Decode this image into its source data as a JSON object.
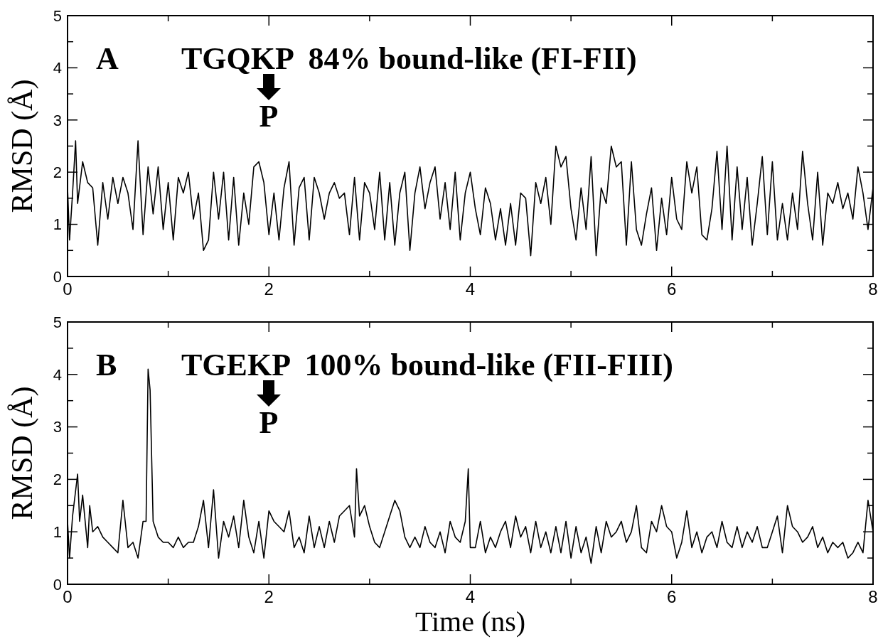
{
  "chart_data": [
    {
      "type": "line",
      "ylabel": "RMSD (Å)",
      "annotations": [
        "A",
        "TGQKP  84% bound-like (FI-FII)",
        "P"
      ],
      "xlim": [
        0,
        8
      ],
      "ylim": [
        0,
        5
      ],
      "xticks": [
        0,
        {
          "value": 1,
          "label": null
        },
        2,
        {
          "value": 3,
          "label": null
        },
        4,
        {
          "value": 5,
          "label": null
        },
        6,
        {
          "value": 7,
          "label": null
        },
        8
      ],
      "yticks": [
        0,
        {
          "value": 0.5,
          "label": null
        },
        1,
        {
          "value": 1.5,
          "label": null
        },
        2,
        {
          "value": 2.5,
          "label": null
        },
        3,
        {
          "value": 3.5,
          "label": null
        },
        4,
        {
          "value": 4.5,
          "label": null
        },
        5
      ],
      "x": [
        0,
        0.02,
        0.05,
        0.08,
        0.1,
        0.15,
        0.2,
        0.25,
        0.3,
        0.35,
        0.4,
        0.45,
        0.5,
        0.55,
        0.6,
        0.65,
        0.7,
        0.75,
        0.8,
        0.85,
        0.9,
        0.95,
        1.0,
        1.05,
        1.1,
        1.15,
        1.2,
        1.25,
        1.3,
        1.35,
        1.4,
        1.45,
        1.5,
        1.55,
        1.6,
        1.65,
        1.7,
        1.75,
        1.8,
        1.85,
        1.9,
        1.95,
        2.0,
        2.05,
        2.1,
        2.15,
        2.2,
        2.25,
        2.3,
        2.35,
        2.4,
        2.45,
        2.5,
        2.55,
        2.6,
        2.65,
        2.7,
        2.75,
        2.8,
        2.85,
        2.9,
        2.95,
        3.0,
        3.05,
        3.1,
        3.15,
        3.2,
        3.25,
        3.3,
        3.35,
        3.4,
        3.45,
        3.5,
        3.55,
        3.6,
        3.65,
        3.7,
        3.75,
        3.8,
        3.85,
        3.9,
        3.95,
        4.0,
        4.05,
        4.1,
        4.15,
        4.2,
        4.25,
        4.3,
        4.35,
        4.4,
        4.45,
        4.5,
        4.55,
        4.6,
        4.65,
        4.7,
        4.75,
        4.8,
        4.85,
        4.9,
        4.95,
        5.0,
        5.05,
        5.1,
        5.15,
        5.2,
        5.25,
        5.3,
        5.35,
        5.4,
        5.45,
        5.5,
        5.55,
        5.6,
        5.65,
        5.7,
        5.75,
        5.8,
        5.85,
        5.9,
        5.95,
        6.0,
        6.05,
        6.1,
        6.15,
        6.2,
        6.25,
        6.3,
        6.35,
        6.4,
        6.45,
        6.5,
        6.55,
        6.6,
        6.65,
        6.7,
        6.75,
        6.8,
        6.85,
        6.9,
        6.95,
        7.0,
        7.05,
        7.1,
        7.15,
        7.2,
        7.25,
        7.3,
        7.35,
        7.4,
        7.45,
        7.5,
        7.55,
        7.6,
        7.65,
        7.7,
        7.75,
        7.8,
        7.85,
        7.9,
        7.95,
        8.0
      ],
      "series": [
        {
          "color": "#000000",
          "values": [
            1.7,
            0.7,
            1.6,
            2.6,
            1.4,
            2.2,
            1.8,
            1.7,
            0.6,
            1.8,
            1.1,
            1.9,
            1.4,
            1.9,
            1.6,
            0.9,
            2.6,
            0.8,
            2.1,
            1.2,
            2.1,
            0.9,
            1.8,
            0.7,
            1.9,
            1.6,
            2.0,
            1.1,
            1.6,
            0.5,
            0.7,
            2.0,
            1.1,
            2.0,
            0.7,
            1.9,
            0.6,
            1.6,
            1.0,
            2.1,
            2.2,
            1.8,
            0.8,
            1.6,
            0.7,
            1.7,
            2.2,
            0.6,
            1.7,
            1.9,
            0.7,
            1.9,
            1.6,
            1.1,
            1.6,
            1.8,
            1.5,
            1.6,
            0.8,
            1.9,
            0.7,
            1.8,
            1.6,
            0.9,
            2.0,
            0.7,
            1.8,
            0.6,
            1.6,
            2.0,
            0.5,
            1.6,
            2.1,
            1.3,
            1.8,
            2.1,
            1.1,
            1.8,
            0.9,
            2.0,
            0.7,
            1.6,
            2.0,
            1.3,
            0.8,
            1.7,
            1.4,
            0.7,
            1.3,
            0.6,
            1.4,
            0.6,
            1.6,
            1.5,
            0.4,
            1.8,
            1.4,
            1.9,
            1.0,
            2.5,
            2.1,
            2.3,
            1.3,
            0.7,
            1.7,
            0.9,
            2.3,
            0.4,
            1.7,
            1.4,
            2.5,
            2.1,
            2.2,
            0.6,
            2.2,
            0.9,
            0.6,
            1.2,
            1.7,
            0.5,
            1.5,
            0.8,
            1.9,
            1.1,
            0.9,
            2.2,
            1.6,
            2.1,
            0.8,
            0.7,
            1.3,
            2.4,
            0.9,
            2.5,
            0.7,
            2.1,
            0.9,
            1.9,
            0.6,
            1.4,
            2.3,
            0.8,
            2.2,
            0.7,
            1.4,
            0.7,
            1.6,
            0.9,
            2.4,
            1.4,
            0.7,
            2.0,
            0.6,
            1.6,
            1.4,
            1.8,
            1.3,
            1.6,
            1.1,
            2.1,
            1.6,
            0.9,
            1.7
          ]
        }
      ]
    },
    {
      "type": "line",
      "xlabel": "Time (ns)",
      "ylabel": "RMSD (Å)",
      "annotations": [
        "B",
        "TGEKP  100% bound-like (FII-FIII)",
        "P"
      ],
      "xlim": [
        0,
        8
      ],
      "ylim": [
        0,
        5
      ],
      "xticks": [
        0,
        {
          "value": 1,
          "label": null
        },
        2,
        {
          "value": 3,
          "label": null
        },
        4,
        {
          "value": 5,
          "label": null
        },
        6,
        {
          "value": 7,
          "label": null
        },
        8
      ],
      "yticks": [
        0,
        {
          "value": 0.5,
          "label": null
        },
        1,
        {
          "value": 1.5,
          "label": null
        },
        2,
        {
          "value": 2.5,
          "label": null
        },
        3,
        {
          "value": 3.5,
          "label": null
        },
        4,
        {
          "value": 4.5,
          "label": null
        },
        5
      ],
      "x": [
        0,
        0.02,
        0.05,
        0.1,
        0.12,
        0.15,
        0.2,
        0.22,
        0.25,
        0.3,
        0.35,
        0.4,
        0.45,
        0.5,
        0.55,
        0.6,
        0.65,
        0.7,
        0.75,
        0.78,
        0.8,
        0.82,
        0.85,
        0.9,
        0.95,
        1.0,
        1.05,
        1.1,
        1.15,
        1.2,
        1.25,
        1.3,
        1.35,
        1.4,
        1.45,
        1.5,
        1.55,
        1.6,
        1.65,
        1.7,
        1.75,
        1.8,
        1.85,
        1.9,
        1.95,
        2.0,
        2.05,
        2.1,
        2.15,
        2.2,
        2.25,
        2.3,
        2.35,
        2.4,
        2.45,
        2.5,
        2.55,
        2.6,
        2.65,
        2.7,
        2.75,
        2.8,
        2.85,
        2.87,
        2.9,
        2.95,
        3.0,
        3.05,
        3.1,
        3.15,
        3.2,
        3.25,
        3.3,
        3.35,
        3.4,
        3.45,
        3.5,
        3.55,
        3.6,
        3.65,
        3.7,
        3.75,
        3.8,
        3.85,
        3.9,
        3.95,
        3.98,
        4.0,
        4.05,
        4.1,
        4.15,
        4.2,
        4.25,
        4.3,
        4.35,
        4.4,
        4.45,
        4.5,
        4.55,
        4.6,
        4.65,
        4.7,
        4.75,
        4.8,
        4.85,
        4.9,
        4.95,
        5.0,
        5.05,
        5.1,
        5.15,
        5.2,
        5.25,
        5.3,
        5.35,
        5.4,
        5.45,
        5.5,
        5.55,
        5.6,
        5.65,
        5.7,
        5.75,
        5.8,
        5.85,
        5.9,
        5.95,
        6.0,
        6.05,
        6.1,
        6.15,
        6.2,
        6.25,
        6.3,
        6.35,
        6.4,
        6.45,
        6.5,
        6.55,
        6.6,
        6.65,
        6.7,
        6.75,
        6.8,
        6.85,
        6.9,
        6.95,
        7.0,
        7.05,
        7.1,
        7.15,
        7.2,
        7.25,
        7.3,
        7.35,
        7.4,
        7.45,
        7.5,
        7.55,
        7.6,
        7.65,
        7.7,
        7.75,
        7.8,
        7.85,
        7.9,
        7.95,
        8.0
      ],
      "series": [
        {
          "color": "#000000",
          "values": [
            1.2,
            0.5,
            1.3,
            2.1,
            1.2,
            1.7,
            0.7,
            1.5,
            1.0,
            1.1,
            0.9,
            0.8,
            0.7,
            0.6,
            1.6,
            0.7,
            0.8,
            0.5,
            1.2,
            1.2,
            4.1,
            3.7,
            1.2,
            0.9,
            0.8,
            0.8,
            0.7,
            0.9,
            0.7,
            0.8,
            0.8,
            1.1,
            1.6,
            0.7,
            1.8,
            0.5,
            1.2,
            0.9,
            1.3,
            0.7,
            1.6,
            0.9,
            0.6,
            1.2,
            0.5,
            1.4,
            1.2,
            1.1,
            1.0,
            1.4,
            0.7,
            0.9,
            0.6,
            1.3,
            0.7,
            1.1,
            0.7,
            1.2,
            0.8,
            1.3,
            1.4,
            1.5,
            0.9,
            2.2,
            1.3,
            1.5,
            1.1,
            0.8,
            0.7,
            1.0,
            1.3,
            1.6,
            1.4,
            0.9,
            0.7,
            0.9,
            0.7,
            1.1,
            0.8,
            0.7,
            1.0,
            0.6,
            1.2,
            0.9,
            0.8,
            1.2,
            2.2,
            0.7,
            0.7,
            1.2,
            0.6,
            0.9,
            0.7,
            1.0,
            1.2,
            0.7,
            1.3,
            0.9,
            1.1,
            0.6,
            1.2,
            0.7,
            1.0,
            0.6,
            1.1,
            0.6,
            1.2,
            0.5,
            1.1,
            0.6,
            0.9,
            0.4,
            1.1,
            0.6,
            1.2,
            0.9,
            1.0,
            1.2,
            0.8,
            1.0,
            1.5,
            0.7,
            0.6,
            1.2,
            1.0,
            1.5,
            1.1,
            1.0,
            0.5,
            0.8,
            1.4,
            0.7,
            1.0,
            0.6,
            0.9,
            1.0,
            0.7,
            1.2,
            0.8,
            0.7,
            1.1,
            0.7,
            1.0,
            0.8,
            1.1,
            0.7,
            0.7,
            1.0,
            1.3,
            0.6,
            1.5,
            1.1,
            1.0,
            0.8,
            0.9,
            1.1,
            0.7,
            0.9,
            0.6,
            0.8,
            0.7,
            0.8,
            0.5,
            0.6,
            0.8,
            0.6,
            1.6,
            1.0
          ]
        }
      ]
    }
  ]
}
